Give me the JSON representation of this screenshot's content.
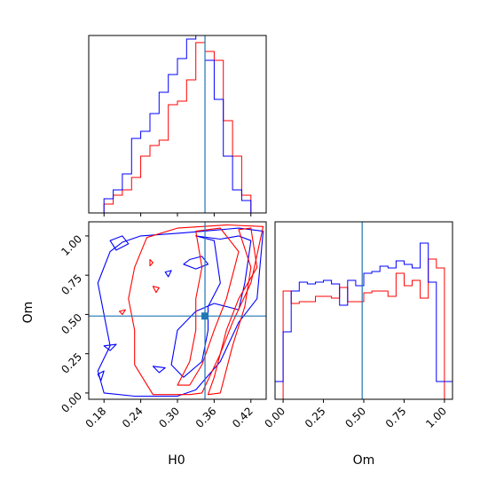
{
  "colors": {
    "red": "#ff0000",
    "blue": "#0000ff",
    "truth": "#1f77b4",
    "axes": "#000000"
  },
  "labels": {
    "h0": "H0",
    "om": "Om"
  },
  "chart_data": [
    {
      "type": "histogram",
      "panel": "H0 marginal (top-left)",
      "xlabel": "",
      "ylabel": "",
      "xlim": [
        0.155,
        0.445
      ],
      "ylim": [
        0,
        1
      ],
      "truth": 0.345,
      "bin_edges": [
        0.18,
        0.195,
        0.21,
        0.225,
        0.24,
        0.255,
        0.27,
        0.285,
        0.3,
        0.315,
        0.33,
        0.345,
        0.36,
        0.375,
        0.39,
        0.405,
        0.42
      ],
      "series": [
        {
          "color": "red",
          "values": [
            0.05,
            0.1,
            0.13,
            0.2,
            0.32,
            0.38,
            0.41,
            0.61,
            0.63,
            0.75,
            0.96,
            0.91,
            0.86,
            0.52,
            0.32,
            0.1
          ]
        },
        {
          "color": "blue",
          "values": [
            0.08,
            0.13,
            0.22,
            0.42,
            0.46,
            0.56,
            0.68,
            0.78,
            0.87,
            0.98,
            1.0,
            0.86,
            0.64,
            0.32,
            0.13,
            0.07
          ]
        }
      ]
    },
    {
      "type": "contour",
      "panel": "H0 vs Om joint (bottom-left)",
      "xlabel": "H0",
      "ylabel": "Om",
      "xlim": [
        0.155,
        0.445
      ],
      "ylim": [
        -0.04,
        1.09
      ],
      "xticks": [
        "0.18",
        "0.24",
        "0.30",
        "0.36",
        "0.42"
      ],
      "yticks": [
        "0.00",
        "0.25",
        "0.50",
        "0.75",
        "1.00"
      ],
      "truth": {
        "x": 0.345,
        "y": 0.49
      },
      "series": [
        {
          "color": "blue",
          "contours": [
            [
              [
                0.21,
                0.96
              ],
              [
                0.24,
                1.0
              ],
              [
                0.31,
                1.02
              ],
              [
                0.4,
                1.05
              ],
              [
                0.44,
                1.03
              ],
              [
                0.43,
                0.6
              ],
              [
                0.4,
                0.45
              ],
              [
                0.37,
                0.2
              ],
              [
                0.33,
                0.02
              ],
              [
                0.3,
                -0.02
              ],
              [
                0.23,
                -0.02
              ],
              [
                0.18,
                0.0
              ],
              [
                0.17,
                0.14
              ],
              [
                0.19,
                0.3
              ],
              [
                0.18,
                0.5
              ],
              [
                0.17,
                0.7
              ],
              [
                0.19,
                0.9
              ]
            ],
            [
              [
                0.33,
                1.0
              ],
              [
                0.36,
                0.97
              ],
              [
                0.37,
                0.7
              ],
              [
                0.35,
                0.55
              ],
              [
                0.35,
                0.4
              ],
              [
                0.34,
                0.2
              ],
              [
                0.31,
                0.1
              ],
              [
                0.29,
                0.18
              ],
              [
                0.3,
                0.4
              ],
              [
                0.33,
                0.52
              ],
              [
                0.36,
                0.57
              ],
              [
                0.4,
                0.53
              ],
              [
                0.41,
                0.7
              ],
              [
                0.42,
                0.97
              ],
              [
                0.4,
                1.0
              ],
              [
                0.37,
                0.98
              ]
            ],
            [
              [
                0.32,
                0.85
              ],
              [
                0.34,
                0.87
              ],
              [
                0.35,
                0.82
              ],
              [
                0.33,
                0.79
              ],
              [
                0.31,
                0.82
              ]
            ],
            [
              [
                0.19,
                0.97
              ],
              [
                0.21,
                1.0
              ],
              [
                0.22,
                0.95
              ],
              [
                0.2,
                0.91
              ]
            ],
            [
              [
                0.18,
                0.3
              ],
              [
                0.2,
                0.31
              ],
              [
                0.19,
                0.27
              ]
            ],
            [
              [
                0.17,
                0.12
              ],
              [
                0.18,
                0.14
              ],
              [
                0.175,
                0.08
              ]
            ],
            [
              [
                0.28,
                0.77
              ],
              [
                0.29,
                0.78
              ],
              [
                0.285,
                0.74
              ]
            ],
            [
              [
                0.26,
                0.17
              ],
              [
                0.28,
                0.16
              ],
              [
                0.27,
                0.13
              ]
            ]
          ]
        },
        {
          "color": "red",
          "contours": [
            [
              [
                0.25,
                0.99
              ],
              [
                0.3,
                1.05
              ],
              [
                0.38,
                1.07
              ],
              [
                0.44,
                1.06
              ],
              [
                0.42,
                0.7
              ],
              [
                0.39,
                0.45
              ],
              [
                0.37,
                0.25
              ],
              [
                0.34,
                0.0
              ],
              [
                0.32,
                -0.01
              ],
              [
                0.26,
                -0.01
              ],
              [
                0.23,
                0.18
              ],
              [
                0.23,
                0.4
              ],
              [
                0.22,
                0.6
              ],
              [
                0.23,
                0.8
              ]
            ],
            [
              [
                0.33,
                1.03
              ],
              [
                0.37,
                1.05
              ],
              [
                0.4,
                0.9
              ],
              [
                0.38,
                0.6
              ],
              [
                0.36,
                0.4
              ],
              [
                0.34,
                0.18
              ],
              [
                0.32,
                0.05
              ],
              [
                0.3,
                0.05
              ],
              [
                0.32,
                0.2
              ],
              [
                0.33,
                0.4
              ],
              [
                0.33,
                0.6
              ],
              [
                0.34,
                0.8
              ]
            ],
            [
              [
                0.4,
                1.04
              ],
              [
                0.42,
                1.05
              ],
              [
                0.43,
                0.8
              ],
              [
                0.4,
                0.6
              ],
              [
                0.38,
                0.4
              ],
              [
                0.36,
                0.1
              ],
              [
                0.35,
                -0.01
              ],
              [
                0.37,
                0.0
              ],
              [
                0.39,
                0.3
              ],
              [
                0.41,
                0.55
              ],
              [
                0.42,
                0.8
              ]
            ],
            [
              [
                0.255,
                0.85
              ],
              [
                0.26,
                0.83
              ],
              [
                0.255,
                0.81
              ]
            ],
            [
              [
                0.26,
                0.68
              ],
              [
                0.27,
                0.67
              ],
              [
                0.265,
                0.64
              ]
            ],
            [
              [
                0.205,
                0.52
              ],
              [
                0.215,
                0.53
              ],
              [
                0.21,
                0.5
              ]
            ]
          ]
        }
      ]
    },
    {
      "type": "histogram",
      "panel": "Om marginal (bottom-right)",
      "xlabel": "Om",
      "ylabel": "",
      "xlim": [
        -0.05,
        1.05
      ],
      "ylim": [
        0,
        1
      ],
      "truth": 0.49,
      "xticks": [
        "0.00",
        "0.25",
        "0.50",
        "0.75",
        "1.00"
      ],
      "bin_edges": [
        -0.05,
        0.0,
        0.05,
        0.1,
        0.15,
        0.2,
        0.25,
        0.3,
        0.35,
        0.4,
        0.45,
        0.5,
        0.55,
        0.6,
        0.65,
        0.7,
        0.75,
        0.8,
        0.85,
        0.9,
        0.95,
        1.0,
        1.05
      ],
      "series": [
        {
          "color": "red",
          "values": [
            0.0,
            0.61,
            0.54,
            0.55,
            0.55,
            0.58,
            0.58,
            0.57,
            0.63,
            0.55,
            0.55,
            0.6,
            0.61,
            0.61,
            0.58,
            0.71,
            0.64,
            0.67,
            0.57,
            0.79,
            0.74,
            0.0
          ]
        },
        {
          "color": "blue",
          "values": [
            0.1,
            0.38,
            0.61,
            0.66,
            0.65,
            0.66,
            0.67,
            0.65,
            0.53,
            0.67,
            0.64,
            0.71,
            0.72,
            0.75,
            0.74,
            0.78,
            0.76,
            0.74,
            0.88,
            0.66,
            0.1,
            0.1
          ]
        }
      ]
    }
  ]
}
